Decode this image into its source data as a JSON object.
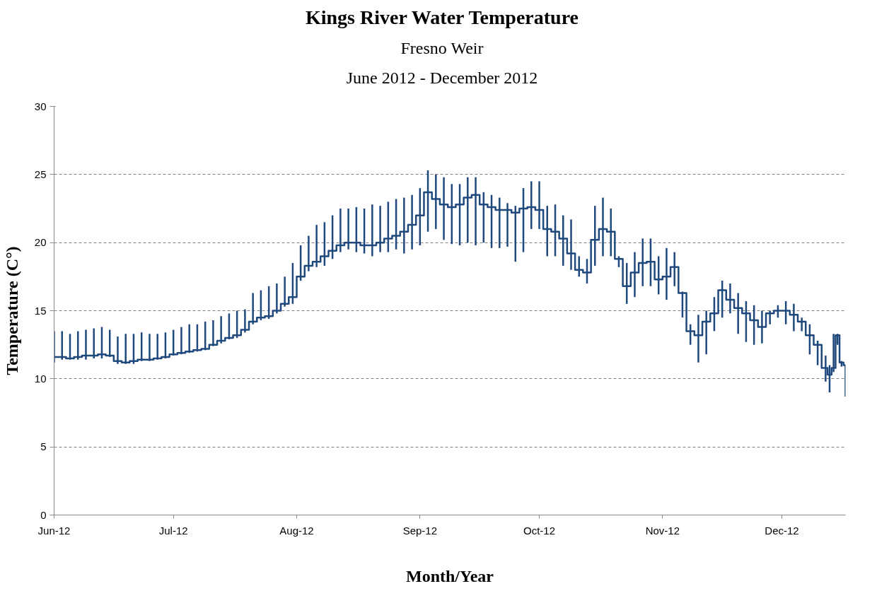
{
  "chart_data": {
    "type": "step",
    "title": "Kings River Water Temperature",
    "subtitle": "Fresno Weir\nJune 2012 - December 2012",
    "xlabel": "Month/Year",
    "ylabel": "Temperature (C°)",
    "xlim": [
      "2012-06-01",
      "2012-12-17"
    ],
    "xticks": [
      {
        "value": "2012-06-01",
        "label": "Jun-12"
      },
      {
        "value": "2012-07-01",
        "label": "Jul-12"
      },
      {
        "value": "2012-08-01",
        "label": "Aug-12"
      },
      {
        "value": "2012-09-01",
        "label": "Sep-12"
      },
      {
        "value": "2012-10-01",
        "label": "Oct-12"
      },
      {
        "value": "2012-11-01",
        "label": "Nov-12"
      },
      {
        "value": "2012-12-01",
        "label": "Dec-12"
      }
    ],
    "ylim": [
      0,
      30
    ],
    "yticks": [
      0,
      5,
      10,
      15,
      20,
      25,
      30
    ],
    "grid": "y",
    "x": [
      "2012-06-01",
      "2012-06-03",
      "2012-06-05",
      "2012-06-07",
      "2012-06-09",
      "2012-06-11",
      "2012-06-13",
      "2012-06-15",
      "2012-06-17",
      "2012-06-19",
      "2012-06-21",
      "2012-06-23",
      "2012-06-25",
      "2012-06-27",
      "2012-06-29",
      "2012-07-01",
      "2012-07-03",
      "2012-07-05",
      "2012-07-07",
      "2012-07-09",
      "2012-07-11",
      "2012-07-13",
      "2012-07-15",
      "2012-07-17",
      "2012-07-19",
      "2012-07-21",
      "2012-07-23",
      "2012-07-25",
      "2012-07-27",
      "2012-07-29",
      "2012-07-31",
      "2012-08-02",
      "2012-08-04",
      "2012-08-06",
      "2012-08-08",
      "2012-08-10",
      "2012-08-12",
      "2012-08-14",
      "2012-08-16",
      "2012-08-18",
      "2012-08-20",
      "2012-08-22",
      "2012-08-24",
      "2012-08-26",
      "2012-08-28",
      "2012-08-30",
      "2012-09-01",
      "2012-09-03",
      "2012-09-05",
      "2012-09-07",
      "2012-09-09",
      "2012-09-11",
      "2012-09-13",
      "2012-09-15",
      "2012-09-17",
      "2012-09-19",
      "2012-09-21",
      "2012-09-23",
      "2012-09-25",
      "2012-09-27",
      "2012-09-29",
      "2012-10-01",
      "2012-10-03",
      "2012-10-05",
      "2012-10-07",
      "2012-10-09",
      "2012-10-11",
      "2012-10-13",
      "2012-10-15",
      "2012-10-17",
      "2012-10-19",
      "2012-10-21",
      "2012-10-23",
      "2012-10-25",
      "2012-10-27",
      "2012-10-29",
      "2012-10-31",
      "2012-11-02",
      "2012-11-04",
      "2012-11-06",
      "2012-11-08",
      "2012-11-10",
      "2012-11-12",
      "2012-11-14",
      "2012-11-16",
      "2012-11-18",
      "2012-11-20",
      "2012-11-22",
      "2012-11-24",
      "2012-11-26",
      "2012-11-28",
      "2012-11-30",
      "2012-12-02",
      "2012-12-04",
      "2012-12-06",
      "2012-12-08",
      "2012-12-10",
      "2012-12-12",
      "2012-12-13",
      "2012-12-14",
      "2012-12-15",
      "2012-12-16",
      "2012-12-17"
    ],
    "series": [
      {
        "color": "#1f497d",
        "values": [
          11.6,
          11.6,
          11.5,
          11.6,
          11.7,
          11.7,
          11.8,
          11.7,
          11.3,
          11.2,
          11.3,
          11.4,
          11.4,
          11.5,
          11.6,
          11.8,
          11.9,
          12.0,
          12.1,
          12.2,
          12.5,
          12.8,
          13.0,
          13.2,
          13.6,
          14.2,
          14.5,
          14.6,
          15.0,
          15.5,
          16.0,
          17.5,
          18.3,
          18.6,
          19.0,
          19.4,
          19.8,
          20.0,
          20.0,
          19.8,
          19.8,
          20.0,
          20.3,
          20.5,
          20.8,
          21.3,
          22.0,
          23.7,
          23.2,
          22.8,
          22.6,
          22.8,
          23.3,
          23.5,
          22.8,
          22.6,
          22.4,
          22.4,
          22.2,
          22.5,
          22.6,
          22.4,
          21.0,
          20.8,
          20.3,
          19.2,
          18.0,
          17.8,
          20.2,
          21.0,
          20.8,
          18.8,
          16.8,
          17.8,
          18.5,
          18.6,
          17.3,
          17.5,
          18.2,
          16.3,
          13.5,
          13.2,
          14.2,
          14.8,
          16.5,
          15.8,
          15.2,
          14.8,
          14.3,
          13.8,
          14.8,
          15.0,
          15.0,
          14.7,
          14.2,
          13.2,
          12.5,
          10.8,
          10.3,
          10.8,
          13.2,
          11.2,
          11.0
        ],
        "errors": [
          [
            11.2,
            13.5
          ],
          [
            11.4,
            13.5
          ],
          [
            11.4,
            13.3
          ],
          [
            11.4,
            13.5
          ],
          [
            11.4,
            13.6
          ],
          [
            11.5,
            13.7
          ],
          [
            11.5,
            13.8
          ],
          [
            11.6,
            13.6
          ],
          [
            11.1,
            13.1
          ],
          [
            11.1,
            13.3
          ],
          [
            11.1,
            13.3
          ],
          [
            11.3,
            13.4
          ],
          [
            11.3,
            13.3
          ],
          [
            11.4,
            13.3
          ],
          [
            11.5,
            13.4
          ],
          [
            11.7,
            13.6
          ],
          [
            11.8,
            13.8
          ],
          [
            11.9,
            14.0
          ],
          [
            12.0,
            14.0
          ],
          [
            12.1,
            14.2
          ],
          [
            12.4,
            14.3
          ],
          [
            12.6,
            14.6
          ],
          [
            12.9,
            14.8
          ],
          [
            13.0,
            15.0
          ],
          [
            13.4,
            15.1
          ],
          [
            14.0,
            16.3
          ],
          [
            14.3,
            16.5
          ],
          [
            14.4,
            16.8
          ],
          [
            14.8,
            17.0
          ],
          [
            15.3,
            17.5
          ],
          [
            15.5,
            18.5
          ],
          [
            17.2,
            19.8
          ],
          [
            17.9,
            20.5
          ],
          [
            18.2,
            21.3
          ],
          [
            18.3,
            21.5
          ],
          [
            18.8,
            22.0
          ],
          [
            19.3,
            22.5
          ],
          [
            19.5,
            22.5
          ],
          [
            19.3,
            22.6
          ],
          [
            19.2,
            22.5
          ],
          [
            19.0,
            22.8
          ],
          [
            19.3,
            22.7
          ],
          [
            19.3,
            23.0
          ],
          [
            19.5,
            23.2
          ],
          [
            19.2,
            23.3
          ],
          [
            19.5,
            23.5
          ],
          [
            19.8,
            24.0
          ],
          [
            20.8,
            25.3
          ],
          [
            21.0,
            25.0
          ],
          [
            20.2,
            24.8
          ],
          [
            19.9,
            24.3
          ],
          [
            19.8,
            24.3
          ],
          [
            20.0,
            24.8
          ],
          [
            19.8,
            24.8
          ],
          [
            20.0,
            23.7
          ],
          [
            19.6,
            23.5
          ],
          [
            19.6,
            23.3
          ],
          [
            19.7,
            22.9
          ],
          [
            18.6,
            22.7
          ],
          [
            19.3,
            24.0
          ],
          [
            21.0,
            24.5
          ],
          [
            21.0,
            24.5
          ],
          [
            19.0,
            22.7
          ],
          [
            19.0,
            22.8
          ],
          [
            18.3,
            22.0
          ],
          [
            18.0,
            21.7
          ],
          [
            17.5,
            19.0
          ],
          [
            17.0,
            18.8
          ],
          [
            18.3,
            22.7
          ],
          [
            19.0,
            23.3
          ],
          [
            19.0,
            22.5
          ],
          [
            18.2,
            19.0
          ],
          [
            15.5,
            18.5
          ],
          [
            16.0,
            19.3
          ],
          [
            16.8,
            20.3
          ],
          [
            16.8,
            20.3
          ],
          [
            16.2,
            19.0
          ],
          [
            15.8,
            19.6
          ],
          [
            16.8,
            19.3
          ],
          [
            14.5,
            16.4
          ],
          [
            12.5,
            14.0
          ],
          [
            11.2,
            14.7
          ],
          [
            11.8,
            15.0
          ],
          [
            13.5,
            16.0
          ],
          [
            14.5,
            17.2
          ],
          [
            14.8,
            17.0
          ],
          [
            13.3,
            16.3
          ],
          [
            12.7,
            15.7
          ],
          [
            12.5,
            15.4
          ],
          [
            12.6,
            15.0
          ],
          [
            14.0,
            15.0
          ],
          [
            14.5,
            15.4
          ],
          [
            14.0,
            15.7
          ],
          [
            13.5,
            15.5
          ],
          [
            13.5,
            14.5
          ],
          [
            11.8,
            14.0
          ],
          [
            11.0,
            12.8
          ],
          [
            9.8,
            11.7
          ],
          [
            9.0,
            11.0
          ],
          [
            10.5,
            13.3
          ],
          [
            12.5,
            13.3
          ],
          [
            10.9,
            11.3
          ],
          [
            8.7,
            11.0
          ]
        ]
      }
    ]
  }
}
